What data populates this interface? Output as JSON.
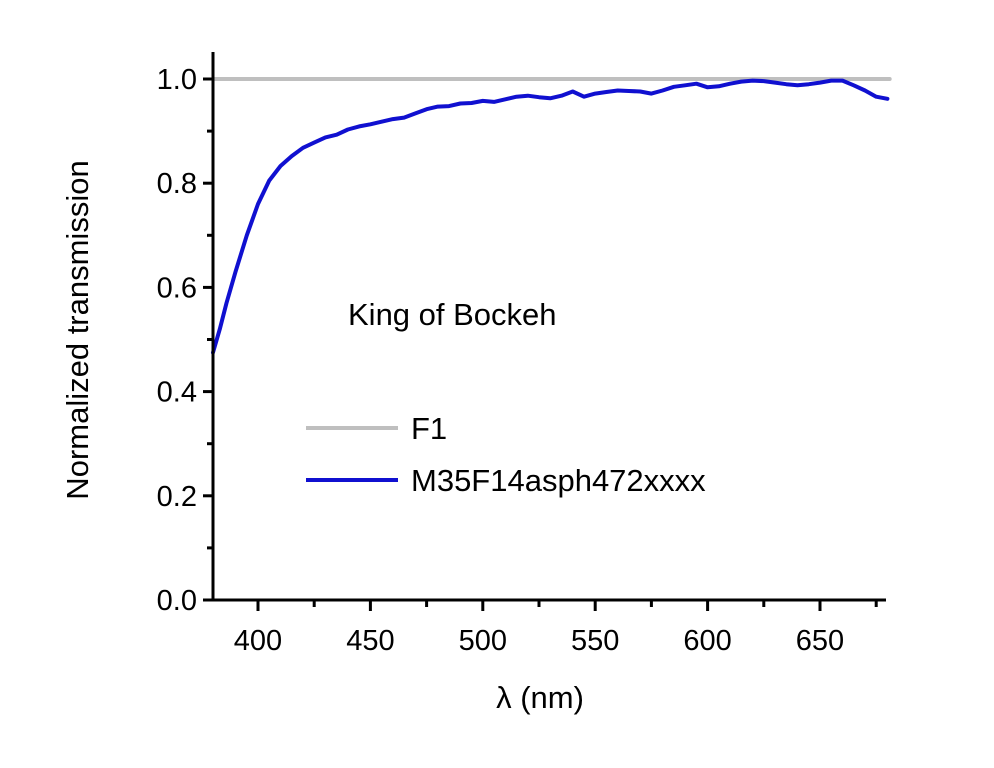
{
  "chart_data": {
    "type": "line",
    "title": "",
    "xlabel": "λ (nm)",
    "ylabel": "Normalized transmission",
    "xlim": [
      380,
      681
    ],
    "ylim": [
      0.0,
      1.05
    ],
    "xticks": [
      400,
      450,
      500,
      550,
      600,
      650
    ],
    "yticks": [
      0.0,
      0.2,
      0.4,
      0.6,
      0.8,
      1.0
    ],
    "xtick_labels": [
      "400",
      "450",
      "500",
      "550",
      "600",
      "650"
    ],
    "ytick_labels": [
      "0.0",
      "0.2",
      "0.4",
      "0.6",
      "0.8",
      "1.0"
    ],
    "grid": false,
    "legend_position": "center",
    "annotation": "King of Bockeh",
    "series": [
      {
        "name": "F1",
        "color": "#bfbfbf",
        "x": [
          380,
          681
        ],
        "y": [
          1.0,
          1.0
        ]
      },
      {
        "name": "M35F14asph472xxxx",
        "color": "#1010d0",
        "x": [
          380,
          383,
          386,
          390,
          395,
          400,
          405,
          410,
          415,
          420,
          425,
          430,
          435,
          440,
          445,
          450,
          455,
          460,
          465,
          470,
          475,
          480,
          485,
          490,
          495,
          500,
          505,
          510,
          515,
          520,
          525,
          530,
          535,
          540,
          545,
          550,
          555,
          560,
          565,
          570,
          575,
          580,
          585,
          590,
          595,
          600,
          605,
          610,
          615,
          620,
          625,
          630,
          635,
          640,
          645,
          650,
          655,
          660,
          665,
          670,
          675,
          680
        ],
        "y": [
          0.475,
          0.52,
          0.57,
          0.63,
          0.7,
          0.76,
          0.805,
          0.833,
          0.852,
          0.868,
          0.878,
          0.888,
          0.893,
          0.903,
          0.909,
          0.913,
          0.918,
          0.923,
          0.926,
          0.934,
          0.942,
          0.947,
          0.948,
          0.953,
          0.954,
          0.958,
          0.956,
          0.961,
          0.966,
          0.968,
          0.965,
          0.963,
          0.968,
          0.976,
          0.966,
          0.972,
          0.975,
          0.978,
          0.977,
          0.976,
          0.972,
          0.978,
          0.985,
          0.988,
          0.991,
          0.984,
          0.986,
          0.991,
          0.995,
          0.997,
          0.996,
          0.993,
          0.99,
          0.988,
          0.99,
          0.993,
          0.997,
          0.997,
          0.988,
          0.978,
          0.966,
          0.962
        ]
      }
    ]
  }
}
